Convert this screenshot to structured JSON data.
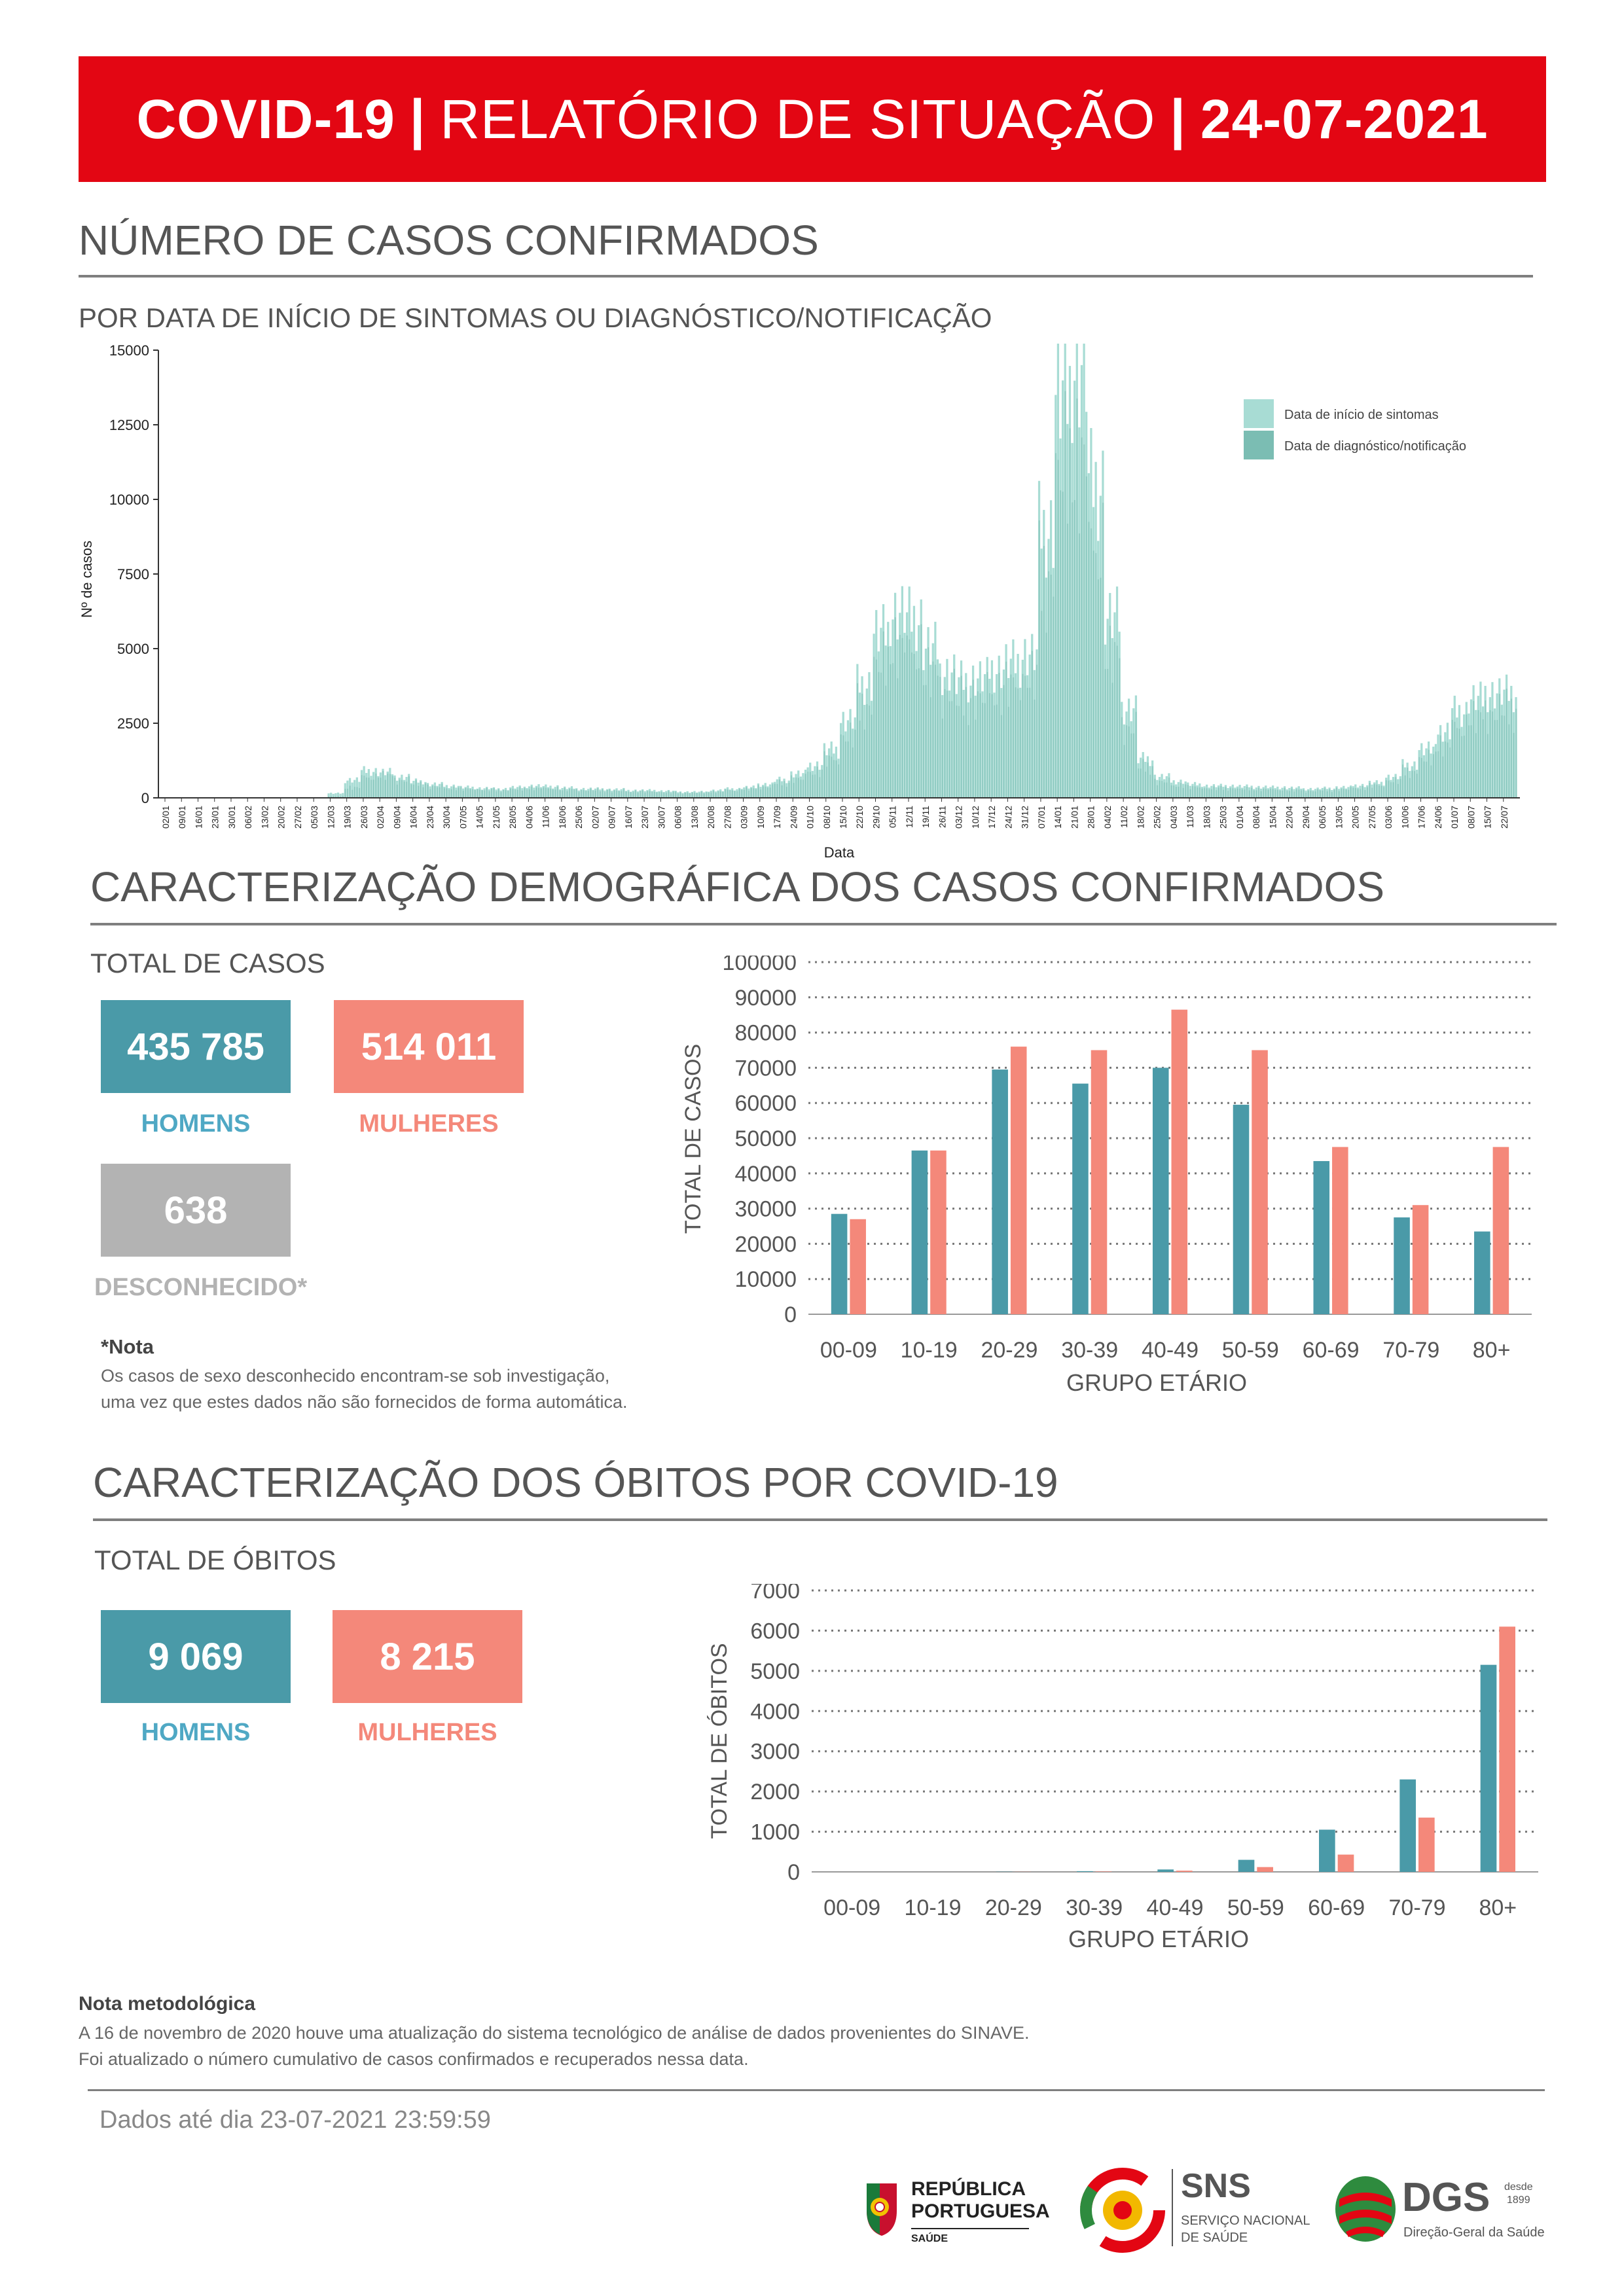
{
  "header": {
    "title_a": "COVID-19",
    "title_sep1": "|",
    "title_b": "RELATÓRIO DE SITUAÇÃO",
    "title_sep2": "|",
    "title_date": "24-07-2021"
  },
  "section_cases": {
    "title": "NÚMERO DE CASOS CONFIRMADOS",
    "subtitle": "POR DATA DE INÍCIO DE SINTOMAS OU DIAGNÓSTICO/NOTIFICAÇÃO"
  },
  "section_demo": {
    "title": "CARACTERIZAÇÃO DEMOGRÁFICA DOS CASOS CONFIRMADOS",
    "total_label": "TOTAL DE CASOS",
    "men_value": "435 785",
    "men_label": "HOMENS",
    "women_value": "514 011",
    "women_label": "MULHERES",
    "unknown_value": "638",
    "unknown_label": "DESCONHECIDO*",
    "note_title": "*Nota",
    "note_line1": "Os casos de sexo desconhecido encontram-se sob investigação,",
    "note_line2": "uma vez que estes dados não são fornecidos de forma automática."
  },
  "section_deaths": {
    "title": "CARACTERIZAÇÃO DOS ÓBITOS POR COVID-19",
    "total_label": "TOTAL DE ÓBITOS",
    "men_value": "9 069",
    "men_label": "HOMENS",
    "women_value": "8 215",
    "women_label": "MULHERES"
  },
  "method_note": {
    "title": "Nota metodológica",
    "line1": "A 16 de novembro de 2020 houve uma atualização do sistema tecnológico de análise de dados provenientes do SINAVE.",
    "line2": "Foi atualizado o número cumulativo de casos confirmados e recuperados nessa data."
  },
  "footer": {
    "data_until": "Dados até dia 23-07-2021 23:59:59",
    "logo1_line1": "REPÚBLICA",
    "logo1_line2": "PORTUGUESA",
    "logo1_line3": "SAÚDE",
    "logo2_title": "SNS",
    "logo2_line1": "SERVIÇO NACIONAL",
    "logo2_line2": "DE SAÚDE",
    "logo3_title": "DGS",
    "logo3_since1": "desde",
    "logo3_since2": "1899",
    "logo3_sub": "Direção-Geral da Saúde"
  },
  "colors": {
    "men": "#4a9aa8",
    "women": "#f4887a",
    "unknown": "#b3b3b3",
    "banner": "#e30613",
    "symptoms": "#a8dcd4",
    "diagnosis": "#7bbdb3"
  },
  "chart_data": [
    {
      "type": "bar",
      "xlabel": "Data",
      "ylabel": "Nº de casos",
      "ylim": [
        0,
        15000
      ],
      "yticks": [
        "0",
        "2500",
        "5000",
        "7500",
        "10000",
        "12500",
        "15000"
      ],
      "legend_position": "top-right",
      "series": [
        {
          "name": "Data de início de sintomas",
          "color": "#a8dcd4"
        },
        {
          "name": "Data de diagnóstico/notificação",
          "color": "#7bbdb3"
        }
      ],
      "dates": [
        "02/01",
        "09/01",
        "16/01",
        "23/01",
        "30/01",
        "06/02",
        "13/02",
        "20/02",
        "27/02",
        "05/03",
        "12/03",
        "19/03",
        "26/03",
        "02/04",
        "09/04",
        "16/04",
        "23/04",
        "30/04",
        "07/05",
        "14/05",
        "21/05",
        "28/05",
        "04/06",
        "11/06",
        "18/06",
        "25/06",
        "02/07",
        "09/07",
        "16/07",
        "23/07",
        "30/07",
        "06/08",
        "13/08",
        "20/08",
        "27/08",
        "03/09",
        "10/09",
        "17/09",
        "24/09",
        "01/10",
        "08/10",
        "15/10",
        "22/10",
        "29/10",
        "05/11",
        "12/11",
        "19/11",
        "26/11",
        "03/12",
        "10/12",
        "17/12",
        "24/12",
        "31/12",
        "07/01",
        "14/01",
        "21/01",
        "28/01",
        "04/02",
        "11/02",
        "18/02",
        "25/02",
        "04/03",
        "11/03",
        "18/03",
        "25/03",
        "01/04",
        "08/04",
        "15/04",
        "22/04",
        "29/04",
        "06/05",
        "13/05",
        "20/05",
        "27/05",
        "03/06",
        "10/06",
        "17/06",
        "24/06",
        "01/07",
        "08/07",
        "15/07",
        "22/07"
      ],
      "symptoms_weekly": [
        0,
        0,
        0,
        0,
        0,
        0,
        0,
        0,
        0,
        0,
        150,
        600,
        900,
        850,
        700,
        550,
        450,
        400,
        350,
        320,
        300,
        350,
        400,
        380,
        330,
        300,
        300,
        280,
        250,
        250,
        230,
        200,
        200,
        250,
        300,
        350,
        450,
        600,
        800,
        1100,
        1600,
        2600,
        3800,
        5500,
        6200,
        6000,
        5000,
        4200,
        3900,
        4000,
        4300,
        4500,
        4800,
        9000,
        13500,
        14500,
        10500,
        6000,
        3000,
        1300,
        700,
        550,
        450,
        400,
        400,
        380,
        360,
        350,
        330,
        300,
        320,
        350,
        420,
        500,
        700,
        1100,
        1600,
        2200,
        2900,
        3300,
        3500,
        3500
      ],
      "diagnosis_weekly": [
        0,
        0,
        0,
        0,
        0,
        0,
        0,
        0,
        0,
        0,
        50,
        350,
        700,
        750,
        600,
        480,
        380,
        330,
        300,
        280,
        260,
        290,
        330,
        320,
        280,
        260,
        260,
        240,
        220,
        210,
        190,
        170,
        170,
        210,
        260,
        300,
        380,
        500,
        650,
        900,
        1300,
        2100,
        3100,
        4500,
        5200,
        5000,
        4200,
        3600,
        3300,
        3400,
        3600,
        3800,
        4100,
        7500,
        11000,
        11500,
        8500,
        4800,
        2400,
        1050,
        550,
        430,
        360,
        320,
        320,
        300,
        290,
        280,
        260,
        240,
        260,
        290,
        340,
        420,
        580,
        900,
        1300,
        1800,
        2400,
        2700,
        2900,
        2950
      ]
    },
    {
      "type": "bar",
      "xlabel": "GRUPO ETÁRIO",
      "ylabel": "TOTAL DE CASOS",
      "ylim": [
        0,
        100000
      ],
      "yticks": [
        "0",
        "10000",
        "20000",
        "30000",
        "40000",
        "50000",
        "60000",
        "70000",
        "80000",
        "90000",
        "100000"
      ],
      "categories": [
        "00-09",
        "10-19",
        "20-29",
        "30-39",
        "40-49",
        "50-59",
        "60-69",
        "70-79",
        "80+"
      ],
      "series": [
        {
          "name": "HOMENS",
          "values": [
            28500,
            46500,
            69500,
            65500,
            70000,
            59500,
            43500,
            27500,
            23500
          ]
        },
        {
          "name": "MULHERES",
          "values": [
            27000,
            46500,
            76000,
            75000,
            86500,
            75000,
            47500,
            31000,
            47500
          ]
        }
      ]
    },
    {
      "type": "bar",
      "xlabel": "GRUPO ETÁRIO",
      "ylabel": "TOTAL DE ÓBITOS",
      "ylim": [
        0,
        7000
      ],
      "yticks": [
        "0",
        "1000",
        "2000",
        "3000",
        "4000",
        "5000",
        "6000",
        "7000"
      ],
      "categories": [
        "00-09",
        "10-19",
        "20-29",
        "30-39",
        "40-49",
        "50-59",
        "60-69",
        "70-79",
        "80+"
      ],
      "series": [
        {
          "name": "HOMENS",
          "values": [
            0,
            0,
            5,
            18,
            60,
            300,
            1050,
            2300,
            5150
          ]
        },
        {
          "name": "MULHERES",
          "values": [
            0,
            0,
            3,
            10,
            30,
            120,
            430,
            1350,
            6100
          ]
        }
      ]
    }
  ]
}
